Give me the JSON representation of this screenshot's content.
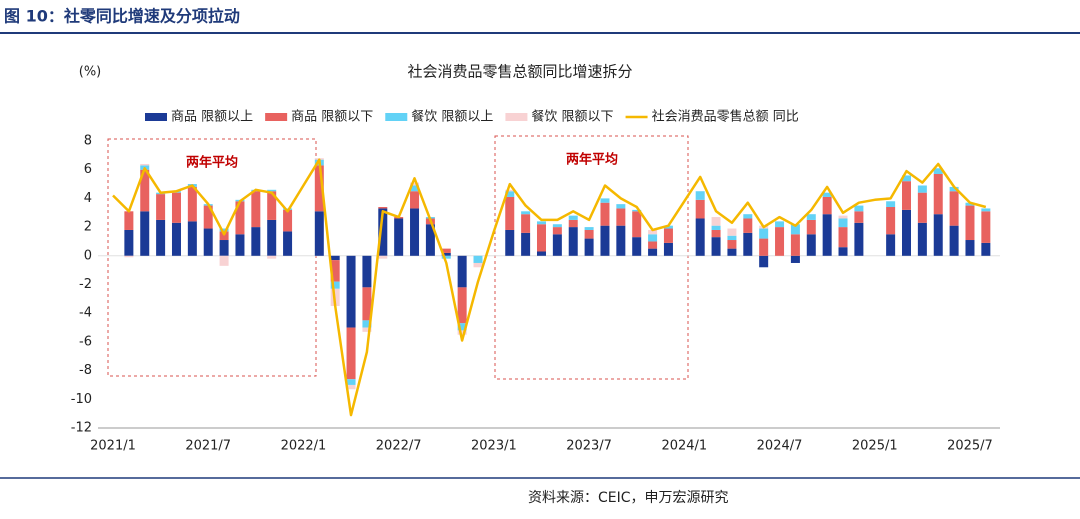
{
  "header": "图 10：社零同比增速及分项拉动",
  "source": "资料来源：CEIC，申万宏源研究",
  "chart_data": {
    "type": "bar",
    "stacked": true,
    "title": "社会消费品零售总额同比增速拆分",
    "y_unit": "(%)",
    "annotations": [
      "两年平均",
      "两年平均"
    ],
    "categories": [
      "2021/1",
      null,
      null,
      null,
      null,
      null,
      "2021/7",
      null,
      null,
      null,
      null,
      null,
      "2022/1",
      null,
      null,
      null,
      null,
      null,
      "2022/7",
      null,
      null,
      null,
      null,
      null,
      "2023/1",
      null,
      null,
      null,
      null,
      null,
      "2023/7",
      null,
      null,
      null,
      null,
      null,
      "2024/1",
      null,
      null,
      null,
      null,
      null,
      "2024/7",
      null,
      null,
      null,
      null,
      null,
      "2025/1",
      null,
      null,
      null,
      null,
      null,
      "2025/7",
      null
    ],
    "ylim": [
      -12,
      8
    ],
    "yticks": [
      -12,
      -10,
      -8,
      -6,
      -4,
      -2,
      0,
      2,
      4,
      6,
      8
    ],
    "series": [
      {
        "name": "商品 限额以上",
        "color": "#1b3a96",
        "values": [
          null,
          1.8,
          3.1,
          2.5,
          2.3,
          2.4,
          1.9,
          1.1,
          1.5,
          2.0,
          2.5,
          1.7,
          null,
          3.1,
          -0.3,
          -5.0,
          -2.2,
          3.3,
          2.6,
          3.3,
          2.2,
          0.2,
          -2.2,
          0,
          null,
          1.8,
          1.6,
          0.3,
          1.5,
          2.0,
          1.2,
          2.1,
          2.1,
          1.3,
          0.5,
          0.9,
          null,
          2.6,
          1.3,
          0.5,
          1.6,
          -0.8,
          0,
          -0.5,
          1.5,
          2.9,
          0.6,
          2.3,
          null,
          1.5,
          3.2,
          2.3,
          2.9,
          2.1,
          1.1,
          0.9
        ]
      },
      {
        "name": "商品 限额以下",
        "color": "#e8625f",
        "values": [
          null,
          1.3,
          2.9,
          1.8,
          2.1,
          2.4,
          1.6,
          0.6,
          2.3,
          2.5,
          2.0,
          1.5,
          null,
          3.2,
          -1.5,
          -3.6,
          -2.3,
          0.1,
          0.1,
          1.2,
          0.4,
          0.3,
          -2.5,
          0,
          null,
          2.3,
          1.3,
          1.9,
          0.5,
          0.5,
          0.6,
          1.6,
          1.2,
          1.8,
          0.5,
          1.0,
          null,
          1.3,
          0.5,
          0.6,
          1.0,
          1.2,
          2.0,
          1.5,
          1.0,
          1.2,
          1.4,
          0.8,
          null,
          1.9,
          2.0,
          2.1,
          2.8,
          2.4,
          2.4,
          2.2
        ]
      },
      {
        "name": "餐饮 限额以上",
        "color": "#62d2f6",
        "values": [
          null,
          0,
          0.3,
          0.1,
          0.1,
          0.2,
          0.1,
          0.2,
          0.1,
          0.1,
          0.1,
          0.1,
          null,
          0.4,
          -0.5,
          -0.4,
          -0.5,
          0,
          0,
          0.4,
          0.1,
          -0.2,
          -0.5,
          -0.5,
          null,
          0.4,
          0.2,
          0.2,
          0.2,
          0.3,
          0.2,
          0.3,
          0.3,
          0.1,
          0.5,
          0.2,
          null,
          0.6,
          0.3,
          0.3,
          0.3,
          0.7,
          0.4,
          0.7,
          0.4,
          0.3,
          0.6,
          0.4,
          null,
          0.4,
          0.4,
          0.5,
          0.4,
          0.3,
          0.2,
          0.2
        ]
      },
      {
        "name": "餐饮 限额以下",
        "color": "#f8d2d3",
        "values": [
          null,
          -0.1,
          0.1,
          0,
          0,
          0,
          0,
          -0.7,
          0,
          0,
          -0.2,
          0,
          null,
          0.1,
          -1.2,
          -0.3,
          -0.3,
          -0.2,
          0,
          0.2,
          0,
          0,
          -0.3,
          -0.3,
          null,
          0.1,
          0,
          0,
          0,
          0,
          0,
          0,
          0,
          0,
          0.3,
          0,
          null,
          0,
          0.6,
          0.5,
          0,
          0.2,
          0,
          0,
          0,
          0,
          0.2,
          0,
          null,
          0,
          0,
          0,
          0,
          0,
          0,
          0
        ]
      },
      {
        "name": "社会消费品零售总额 同比",
        "type": "line",
        "color": "#f5b800",
        "values": [
          4.2,
          3.1,
          6.1,
          4.4,
          4.5,
          4.9,
          3.6,
          1.5,
          3.8,
          4.6,
          4.4,
          3.1,
          4.9,
          6.7,
          -3.5,
          -11.1,
          -6.7,
          3.1,
          2.7,
          5.4,
          2.5,
          -0.5,
          -5.9,
          -1.8,
          1.7,
          5.0,
          3.5,
          2.5,
          2.5,
          3.1,
          2.5,
          4.9,
          4.0,
          3.4,
          1.8,
          2.1,
          3.8,
          5.5,
          3.1,
          2.3,
          3.7,
          2.0,
          2.7,
          2.1,
          3.2,
          4.8,
          3.0,
          3.7,
          3.9,
          4.0,
          5.9,
          5.1,
          6.4,
          4.8,
          3.7,
          3.4
        ]
      }
    ]
  }
}
